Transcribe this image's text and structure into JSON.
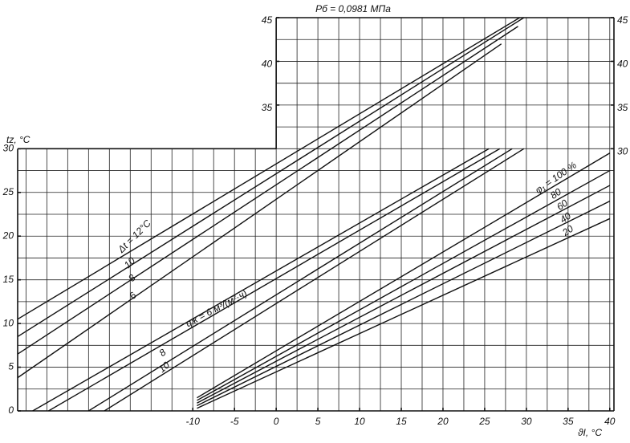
{
  "chart_data": {
    "type": "line",
    "title": "Pб = 0,0981 МПа",
    "y_label": "tz, °C",
    "x_label": "ϑI, °C",
    "annotation": "qж = 6 м³/(м²·ч)",
    "xlim": [
      -31,
      40.5
    ],
    "ylim": [
      0,
      45
    ],
    "xticks": [
      -10,
      -5,
      0,
      5,
      10,
      15,
      20,
      25,
      30,
      35,
      40
    ],
    "yticks": [
      0,
      5,
      10,
      15,
      20,
      25,
      30
    ],
    "y2ticks": [
      30,
      35,
      40,
      45
    ],
    "yticks_upper": [
      35,
      40,
      45
    ],
    "grid": true,
    "grid_step": 2.5,
    "color": "#111111",
    "series": [
      {
        "name": "Δt = 12°C",
        "x": [
          -31,
          29.2
        ],
        "values": [
          10.5,
          45
        ]
      },
      {
        "name": "10",
        "x": [
          -31,
          29.7
        ],
        "values": [
          8.5,
          45
        ]
      },
      {
        "name": "8",
        "x": [
          -31,
          29
        ],
        "values": [
          6.5,
          44
        ]
      },
      {
        "name": "6",
        "x": [
          -31,
          27
        ],
        "values": [
          3.8,
          42
        ]
      },
      {
        "name": "8",
        "x": [
          -29.2,
          25.5
        ],
        "values": [
          0,
          30
        ]
      },
      {
        "name": "10",
        "x": [
          -27.3,
          26.8
        ],
        "values": [
          0,
          30
        ]
      },
      {
        "x": [
          -22.5,
          28.3
        ],
        "values": [
          0,
          30
        ]
      },
      {
        "x": [
          -20.6,
          29.7
        ],
        "values": [
          0,
          30
        ]
      },
      {
        "name": "φ₁ = 100 %",
        "x": [
          -9.5,
          40
        ],
        "values": [
          1.5,
          29.5
        ]
      },
      {
        "name": "80",
        "x": [
          -9.5,
          40
        ],
        "values": [
          1.2,
          27.5
        ]
      },
      {
        "name": "60",
        "x": [
          -9.5,
          40
        ],
        "values": [
          0.9,
          25.8
        ]
      },
      {
        "name": "40",
        "x": [
          -9.5,
          40
        ],
        "values": [
          0.6,
          24
        ]
      },
      {
        "name": "20",
        "x": [
          -9.5,
          40
        ],
        "values": [
          0.3,
          22
        ]
      }
    ]
  }
}
